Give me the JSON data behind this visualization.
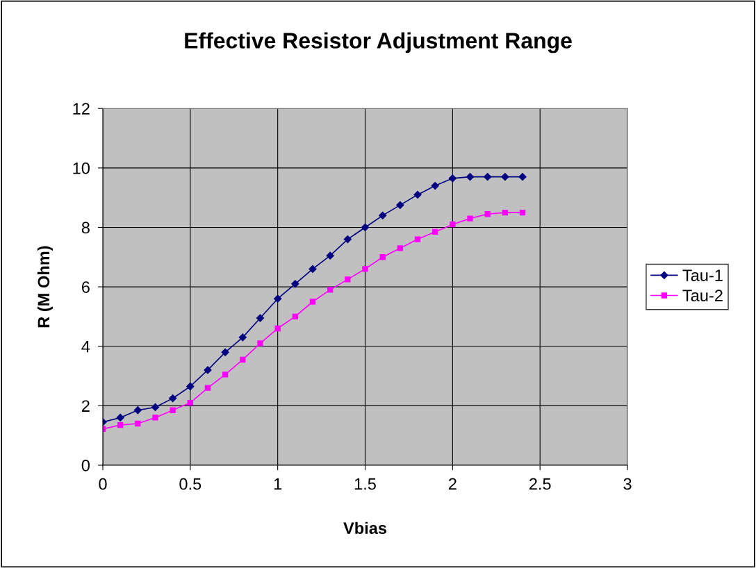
{
  "chart_data": {
    "type": "line",
    "title": "Effective Resistor Adjustment Range",
    "xlabel": "Vbias",
    "ylabel": "R (M Ohm)",
    "x": [
      0,
      0.1,
      0.2,
      0.3,
      0.4,
      0.5,
      0.6,
      0.7,
      0.8,
      0.9,
      1.0,
      1.1,
      1.2,
      1.3,
      1.4,
      1.5,
      1.6,
      1.7,
      1.8,
      1.9,
      2.0,
      2.1,
      2.2,
      2.3,
      2.4
    ],
    "series": [
      {
        "name": "Tau-1",
        "color": "#000080",
        "marker": "diamond",
        "values": [
          1.45,
          1.6,
          1.85,
          1.95,
          2.25,
          2.65,
          3.2,
          3.8,
          4.3,
          4.95,
          5.6,
          6.1,
          6.6,
          7.05,
          7.6,
          8.0,
          8.4,
          8.75,
          9.1,
          9.4,
          9.65,
          9.7,
          9.7,
          9.7,
          9.7
        ]
      },
      {
        "name": "Tau-2",
        "color": "#ff00ff",
        "marker": "square",
        "values": [
          1.22,
          1.35,
          1.4,
          1.6,
          1.85,
          2.1,
          2.6,
          3.05,
          3.55,
          4.1,
          4.6,
          5.0,
          5.5,
          5.9,
          6.25,
          6.6,
          7.0,
          7.3,
          7.6,
          7.85,
          8.1,
          8.3,
          8.45,
          8.5,
          8.5
        ]
      }
    ],
    "xlim": [
      0,
      3
    ],
    "xticks": [
      0,
      0.5,
      1,
      1.5,
      2,
      2.5,
      3
    ],
    "ylim": [
      0,
      12
    ],
    "yticks": [
      0,
      2,
      4,
      6,
      8,
      10,
      12
    ],
    "grid": true,
    "legend": "right",
    "line_style": "solid"
  }
}
